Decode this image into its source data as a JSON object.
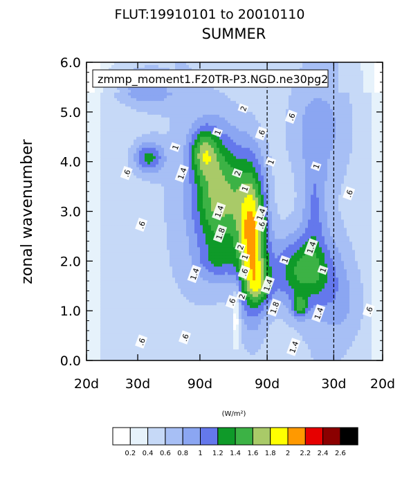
{
  "chart_data": {
    "type": "heatmap",
    "title": "FLUT:19910101 to 20010110",
    "subtitle": "SUMMER",
    "ylabel": "zonal wavenumber",
    "xlabel": "",
    "ylim": [
      0,
      6
    ],
    "y_ticks": [
      "0.0",
      "1.0",
      "2.0",
      "3.0",
      "4.0",
      "5.0",
      "6.0"
    ],
    "x_ticks": [
      "20d",
      "30d",
      "90d",
      "90d",
      "30d",
      "20d"
    ],
    "grid": false,
    "legend_box": "zmmp_moment1.F20TR-P3.NGD.ne30pg2",
    "colorbar": {
      "units": "(W/m²)",
      "levels": [
        "0.2",
        "0.4",
        "0.6",
        "0.8",
        "1",
        "1.2",
        "1.4",
        "1.6",
        "1.8",
        "2",
        "2.2",
        "2.4",
        "2.6"
      ],
      "colors": [
        "#ffffff",
        "#e6f2fb",
        "#c6d9f7",
        "#a7bff5",
        "#8ba6f2",
        "#6478ec",
        "#0f9a29",
        "#3cb245",
        "#a9ca68",
        "#ffff00",
        "#ff9900",
        "#e60000",
        "#8b0000",
        "#000000"
      ]
    },
    "contour_labels": [
      {
        "text": ".6",
        "x": 0.136,
        "y": 0.628
      },
      {
        "text": ".6",
        "x": 0.186,
        "y": 0.455
      },
      {
        "text": ".6",
        "x": 0.186,
        "y": 0.063
      },
      {
        "text": ".6",
        "x": 0.333,
        "y": 0.077
      },
      {
        "text": ".6",
        "x": 0.491,
        "y": 0.196
      },
      {
        "text": ".6",
        "x": 0.533,
        "y": 0.296
      },
      {
        "text": ".6",
        "x": 0.591,
        "y": 0.454
      },
      {
        "text": ".6",
        "x": 0.591,
        "y": 0.761
      },
      {
        "text": ".6",
        "x": 0.692,
        "y": 0.817
      },
      {
        "text": ".6",
        "x": 0.887,
        "y": 0.56
      },
      {
        "text": ".6",
        "x": 0.954,
        "y": 0.168
      },
      {
        "text": "1",
        "x": 0.3,
        "y": 0.715
      },
      {
        "text": "1",
        "x": 0.443,
        "y": 0.765
      },
      {
        "text": "1",
        "x": 0.535,
        "y": 0.576
      },
      {
        "text": "1",
        "x": 0.535,
        "y": 0.347
      },
      {
        "text": "1",
        "x": 0.623,
        "y": 0.666
      },
      {
        "text": "1",
        "x": 0.67,
        "y": 0.336
      },
      {
        "text": "1",
        "x": 0.776,
        "y": 0.651
      },
      {
        "text": "1",
        "x": 0.799,
        "y": 0.303
      },
      {
        "text": "1.4",
        "x": 0.323,
        "y": 0.627
      },
      {
        "text": "1.4",
        "x": 0.365,
        "y": 0.29
      },
      {
        "text": "1.4",
        "x": 0.448,
        "y": 0.5
      },
      {
        "text": "1.4",
        "x": 0.589,
        "y": 0.49
      },
      {
        "text": "1.4",
        "x": 0.613,
        "y": 0.253
      },
      {
        "text": "1.4",
        "x": 0.759,
        "y": 0.379
      },
      {
        "text": "1.4",
        "x": 0.784,
        "y": 0.158
      },
      {
        "text": "1.4",
        "x": 0.7,
        "y": 0.045
      },
      {
        "text": "1.8",
        "x": 0.452,
        "y": 0.425
      },
      {
        "text": "1.8",
        "x": 0.635,
        "y": 0.177
      },
      {
        "text": "2",
        "x": 0.51,
        "y": 0.628
      },
      {
        "text": "2",
        "x": 0.52,
        "y": 0.38
      },
      {
        "text": "2",
        "x": 0.53,
        "y": 0.845
      },
      {
        "text": "2",
        "x": 0.525,
        "y": 0.215
      }
    ]
  }
}
